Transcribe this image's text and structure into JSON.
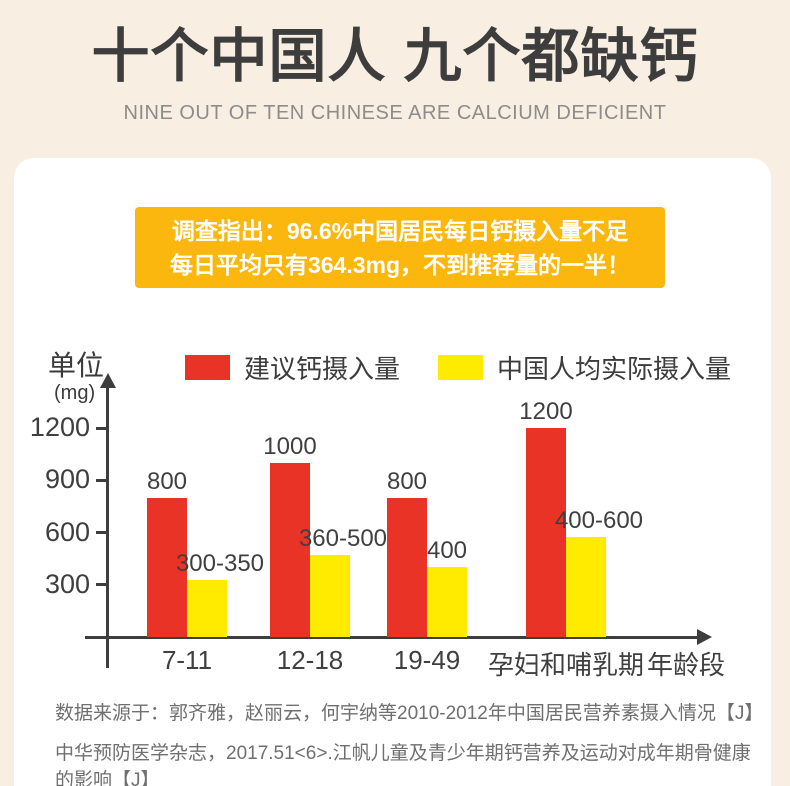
{
  "header": {
    "title": "十个中国人 九个都缺钙",
    "subtitle": "NINE OUT OF TEN CHINESE ARE CALCIUM DEFICIENT"
  },
  "banner": {
    "line1": "调查指出：96.6%中国居民每日钙摄入量不足",
    "line2": "每日平均只有364.3mg，不到推荐量的一半！"
  },
  "chart_data": {
    "type": "bar",
    "title": "",
    "unit_label": "单位",
    "unit_sublabel": "(mg)",
    "xlabel": "年龄段",
    "ylabel": "单位(mg)",
    "categories": [
      "7-11",
      "12-18",
      "19-49",
      "孕妇和哺乳期"
    ],
    "yticks": [
      300,
      600,
      900,
      1200
    ],
    "ylim": [
      0,
      1260
    ],
    "grid": false,
    "legend_position": "top",
    "series": [
      {
        "name": "建议钙摄入量",
        "color": "#EA3327",
        "labels": [
          "800",
          "1000",
          "800",
          "1200"
        ],
        "values": [
          800,
          1000,
          800,
          1200
        ]
      },
      {
        "name": "中国人均实际摄入量",
        "color": "#FFEB00",
        "labels": [
          "300-350",
          "360-500",
          "400",
          "400-600"
        ],
        "values": [
          330,
          470,
          400,
          575
        ]
      }
    ]
  },
  "source": {
    "line1": "数据来源于：郭齐雅，赵丽云，何宇纳等2010-2012年中国居民营养素摄入情况【J】",
    "line2": "中华预防医学杂志，2017.51<6>.江帆儿童及青少年期钙营养及运动对成年期骨健康的影响【J】"
  },
  "colors": {
    "background": "#F8EFE2",
    "card": "#FFFFFF",
    "banner": "#FBB70D",
    "banner_text": "#FFFFFF",
    "title_text": "#3D3D3D",
    "subtitle_text": "#8C8C8C",
    "axis": "#3E3E3E",
    "recommended_bar": "#EA3327",
    "actual_bar": "#FFEB00",
    "source_text": "#6F6F6F"
  }
}
